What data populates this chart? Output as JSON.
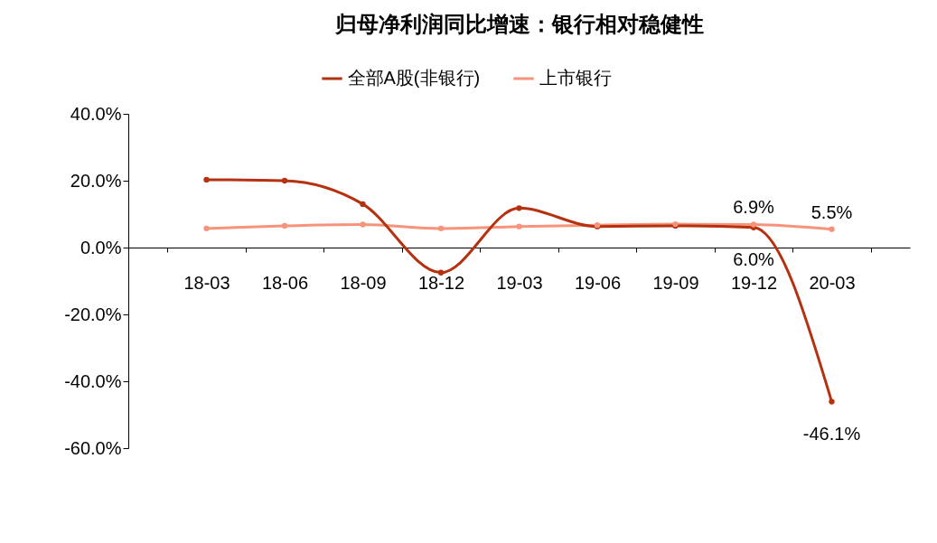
{
  "chart_data": {
    "type": "line",
    "title": "归母净利润同比增速：银行相对稳健性",
    "categories": [
      "18-03",
      "18-06",
      "18-09",
      "18-12",
      "19-03",
      "19-06",
      "19-09",
      "19-12",
      "20-03"
    ],
    "series": [
      {
        "name": "全部A股(非银行)",
        "color": "#b5310f",
        "values": [
          20.3,
          20.0,
          13.0,
          -7.5,
          11.8,
          6.3,
          6.5,
          6.0,
          -46.1
        ],
        "value_labels": [
          null,
          null,
          null,
          null,
          null,
          null,
          null,
          "6.0%",
          "-46.1%"
        ]
      },
      {
        "name": "上市银行",
        "color": "#f7937a",
        "values": [
          5.7,
          6.5,
          6.9,
          5.7,
          6.3,
          6.7,
          7.0,
          6.9,
          5.5
        ],
        "value_labels": [
          null,
          null,
          null,
          null,
          null,
          null,
          null,
          "6.9%",
          "5.5%"
        ]
      }
    ],
    "ylim": [
      -60,
      40
    ],
    "yticks": [
      {
        "value": -60,
        "label": "-60.0%"
      },
      {
        "value": -40,
        "label": "-40.0%"
      },
      {
        "value": -20,
        "label": "-20.0%"
      },
      {
        "value": 0,
        "label": "0.0%"
      },
      {
        "value": 20,
        "label": "20.0%"
      },
      {
        "value": 40,
        "label": "40.0%"
      }
    ],
    "grid": false,
    "legend": "top",
    "marker": "circle",
    "line_style": "solid"
  }
}
